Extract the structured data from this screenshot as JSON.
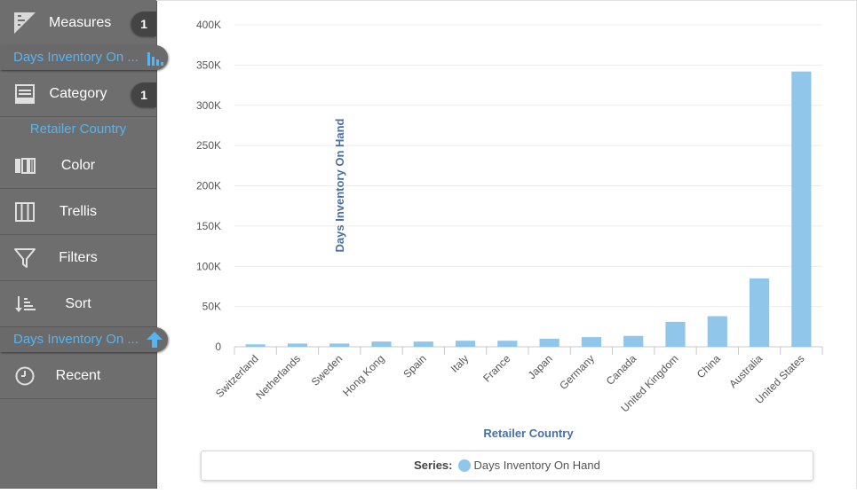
{
  "sidebar": {
    "measures_label": "Measures",
    "measures_count": "1",
    "measure_pill": "Days Inventory On ...",
    "category_label": "Category",
    "category_count": "1",
    "category_pill": "Retailer Country",
    "color_label": "Color",
    "trellis_label": "Trellis",
    "filters_label": "Filters",
    "sort_label": "Sort",
    "sort_pill": "Days Inventory On ...",
    "recent_label": "Recent"
  },
  "legend": {
    "prefix": "Series:",
    "series_name": "Days Inventory On Hand"
  },
  "colors": {
    "bar": "#90c6e9",
    "accent": "#57b4f0",
    "axis_title": "#4a6fa5",
    "sidebar_bg": "#6e6e6e"
  },
  "chart_data": {
    "type": "bar",
    "categories": [
      "Switzerland",
      "Netherlands",
      "Sweden",
      "Hong Kong",
      "Spain",
      "Italy",
      "France",
      "Japan",
      "Germany",
      "Canada",
      "United Kingdom",
      "China",
      "Australia",
      "United States"
    ],
    "series": [
      {
        "name": "Days Inventory On Hand",
        "values": [
          3000,
          4000,
          4000,
          6500,
          6500,
          7500,
          7500,
          10000,
          12000,
          13500,
          31000,
          38000,
          85000,
          342000
        ]
      }
    ],
    "xlabel": "Retailer Country",
    "ylabel": "Days Inventory On Hand",
    "ylim": [
      0,
      400000
    ],
    "yticks": [
      0,
      50000,
      100000,
      150000,
      200000,
      250000,
      300000,
      350000,
      400000
    ],
    "ytick_labels": [
      "0",
      "50K",
      "100K",
      "150K",
      "200K",
      "250K",
      "300K",
      "350K",
      "400K"
    ],
    "grid": true
  }
}
